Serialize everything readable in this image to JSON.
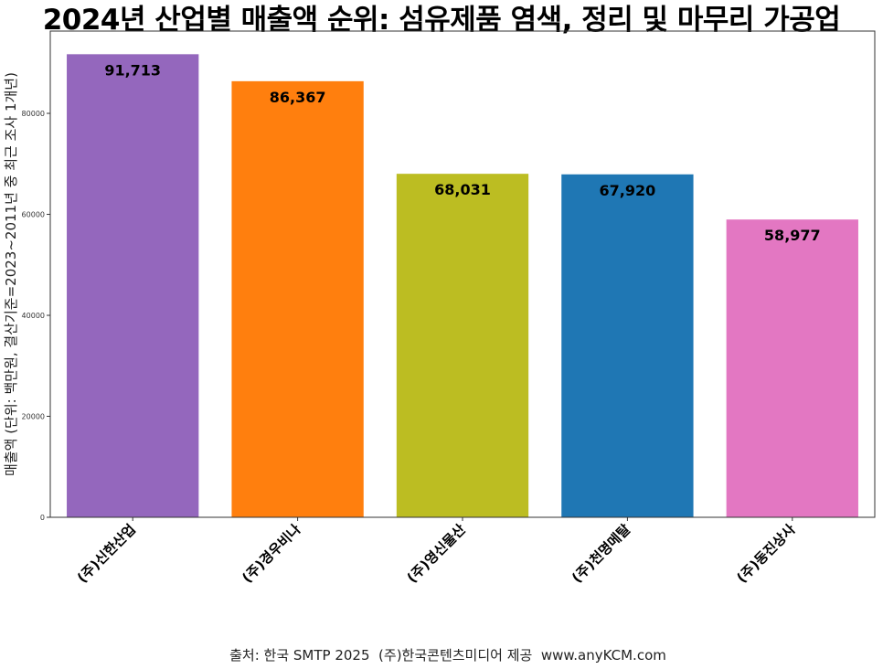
{
  "chart_data": {
    "type": "bar",
    "title": "2024년 산업별 매출액 순위: 섬유제품 염색, 정리 및 마무리 가공업",
    "xlabel": "",
    "ylabel": "매출액 (단위: 백만원, 결산기준=2023~2011년 중 최근 조사 1개년)",
    "categories": [
      "(주)신한산업",
      "(주)경우비나",
      "(주)영신물산",
      "(주)천명메탈",
      "(주)동진상사"
    ],
    "values": [
      91713,
      86367,
      68031,
      67920,
      58977
    ],
    "value_labels": [
      "91,713",
      "86,367",
      "68,031",
      "67,920",
      "58,977"
    ],
    "colors": [
      "#9467bd",
      "#ff7f0e",
      "#bcbd22",
      "#1f77b4",
      "#e377c2"
    ],
    "ylim": [
      0,
      96297
    ],
    "yticks": [
      0,
      20000,
      40000,
      60000,
      80000
    ],
    "ytick_labels": [
      "0",
      "20000",
      "40000",
      "60000",
      "80000"
    ],
    "grid": false,
    "legend": "none"
  },
  "source_note": "출처: 한국 SMTP 2025  (주)한국콘텐츠미디어 제공  www.anyKCM.com"
}
